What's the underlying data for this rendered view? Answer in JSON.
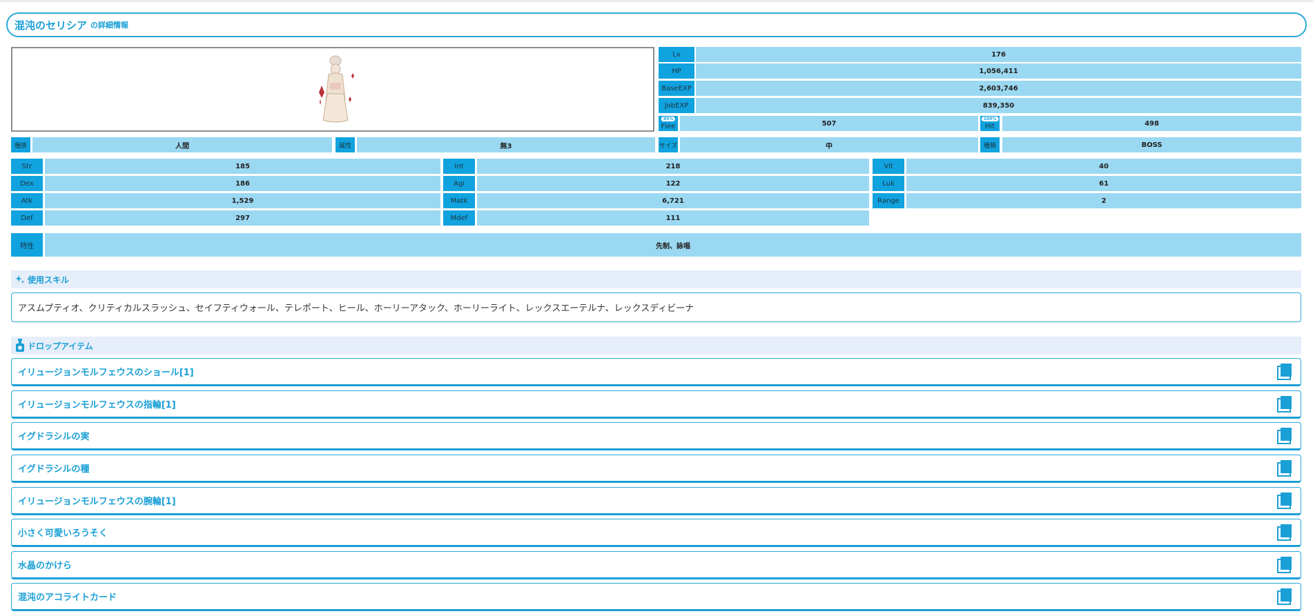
{
  "title": {
    "name": "混沌のセリシア",
    "suffix": "の詳細情報"
  },
  "stats_top": [
    {
      "label": "Lv",
      "value": "176"
    },
    {
      "label": "HP",
      "value": "1,056,411"
    },
    {
      "label": "BaseEXP",
      "value": "2,603,746"
    },
    {
      "label": "JobEXP",
      "value": "839,350"
    }
  ],
  "flee": {
    "label": "Flee",
    "badge": "95%",
    "value": "507"
  },
  "hit": {
    "label": "Hit",
    "badge": "100%",
    "value": "498"
  },
  "attributes": [
    {
      "label": "種族",
      "value": "人間"
    },
    {
      "label": "属性",
      "value": "無3"
    },
    {
      "label": "サイズ",
      "value": "中"
    },
    {
      "label": "種類",
      "value": "BOSS"
    }
  ],
  "params": [
    {
      "label": "Str",
      "value": "185"
    },
    {
      "label": "Int",
      "value": "218"
    },
    {
      "label": "Vit",
      "value": "40"
    },
    {
      "label": "Dex",
      "value": "186"
    },
    {
      "label": "Agi",
      "value": "122"
    },
    {
      "label": "Luk",
      "value": "61"
    },
    {
      "label": "Atk",
      "value": "1,529"
    },
    {
      "label": "Matk",
      "value": "6,721"
    },
    {
      "label": "Range",
      "value": "2"
    },
    {
      "label": "Def",
      "value": "297"
    },
    {
      "label": "Mdef",
      "value": "111"
    }
  ],
  "traits": {
    "label": "特性",
    "value": "先制、詠唱"
  },
  "skills": {
    "heading": "使用スキル",
    "text": "アスムプティオ、クリティカルスラッシュ、セイフティウォール、テレポート、ヒール、ホーリーアタック、ホーリーライト、レックスエーテルナ、レックスディビーナ"
  },
  "drops": {
    "heading": "ドロップアイテム",
    "items": [
      "イリュージョンモルフェウスのショール[1]",
      "イリュージョンモルフェウスの指輪[1]",
      "イグドラシルの実",
      "イグドラシルの種",
      "イリュージョンモルフェウスの腕輪[1]",
      "小さく可愛いろうそく",
      "水晶のかけら",
      "混沌のアコライトカード"
    ]
  },
  "colors": {
    "accent": "#1a9fd6",
    "label_bg": "#11a3df",
    "value_bg": "#9bd8f2",
    "section_bg": "#e5eef9"
  },
  "icons": {
    "skills": "sparkle-icon",
    "drops": "potion-icon",
    "item_action": "book-icon"
  }
}
